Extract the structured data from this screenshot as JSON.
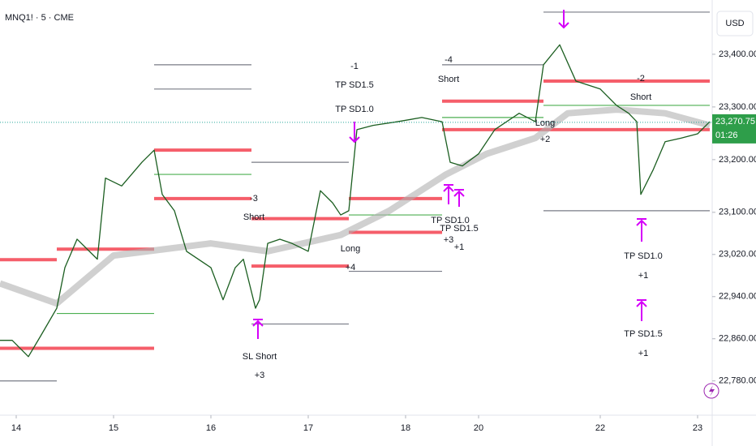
{
  "chart_data": {
    "type": "line",
    "title": "MNQ1! · 5 · CME",
    "currency": "USD",
    "last_price": {
      "value": 23270.75,
      "label": "23,270.75"
    },
    "countdown": "01:26",
    "xlim": [
      0,
      175
    ],
    "ylim": [
      22718,
      23503
    ],
    "grid": false,
    "xticks": [
      {
        "value": 4,
        "label": "14"
      },
      {
        "value": 28,
        "label": "15"
      },
      {
        "value": 52,
        "label": "16"
      },
      {
        "value": 76,
        "label": "17"
      },
      {
        "value": 100,
        "label": "18"
      },
      {
        "value": 118,
        "label": "20"
      },
      {
        "value": 148,
        "label": "22"
      },
      {
        "value": 172,
        "label": "23"
      }
    ],
    "yticks": [
      {
        "value": 22780,
        "label": "22,780.00"
      },
      {
        "value": 22860,
        "label": "22,860.00"
      },
      {
        "value": 22940,
        "label": "22,940.00"
      },
      {
        "value": 23020,
        "label": "23,020.00"
      },
      {
        "value": 23100,
        "label": "23,100.00"
      },
      {
        "value": 23200,
        "label": "23,200.00"
      },
      {
        "value": 23300,
        "label": "23,300.00"
      },
      {
        "value": 23400,
        "label": "23,400.00"
      }
    ],
    "series": [
      {
        "color": "#1b5e20",
        "x": [
          0,
          3,
          7,
          10,
          14,
          16,
          19,
          24,
          26,
          30,
          35,
          38,
          40,
          43,
          46,
          52,
          55,
          58,
          60,
          63,
          64,
          66,
          69,
          72,
          76,
          79,
          82,
          84,
          86,
          88,
          92,
          98,
          104,
          109,
          111,
          114,
          118,
          122,
          128,
          132,
          134,
          138,
          142,
          148,
          152,
          155,
          157,
          158,
          161,
          164,
          168,
          172,
          175
        ],
        "values": [
          22857,
          22857,
          22826,
          22865,
          22918,
          22995,
          23049,
          23011,
          23165,
          23150,
          23195,
          23218,
          23134,
          23103,
          23026,
          22995,
          22934,
          22995,
          23011,
          22918,
          22934,
          23041,
          23049,
          23041,
          23026,
          23141,
          23118,
          23095,
          23103,
          23257,
          23265,
          23272,
          23280,
          23272,
          23195,
          23188,
          23211,
          23257,
          23288,
          23272,
          23380,
          23418,
          23349,
          23334,
          23303,
          23288,
          23272,
          23134,
          23180,
          23234,
          23241,
          23249,
          23272
        ]
      },
      {
        "color": "#b0b0b0",
        "x": [
          0,
          14,
          28,
          52,
          66,
          84,
          96,
          110,
          120,
          132,
          140,
          152,
          164,
          175
        ],
        "values": [
          22965,
          22927,
          23018,
          23041,
          23026,
          23057,
          23103,
          23172,
          23211,
          23241,
          23288,
          23295,
          23288,
          23265
        ]
      }
    ],
    "levels": [
      {
        "x": [
          0,
          14
        ],
        "value": 23010,
        "color": "#f23645"
      },
      {
        "x": [
          0,
          38
        ],
        "value": 22842,
        "color": "#f23645"
      },
      {
        "x": [
          14,
          38
        ],
        "value": 23030,
        "color": "#f23645"
      },
      {
        "x": [
          14,
          38
        ],
        "value": 22908,
        "color": "#4caf50"
      },
      {
        "x": [
          38,
          62
        ],
        "value": 23218,
        "color": "#f23645"
      },
      {
        "x": [
          38,
          62
        ],
        "value": 23126,
        "color": "#f23645"
      },
      {
        "x": [
          38,
          62
        ],
        "value": 23172,
        "color": "#4caf50"
      },
      {
        "x": [
          62,
          86
        ],
        "value": 23088,
        "color": "#f23645"
      },
      {
        "x": [
          62,
          86
        ],
        "value": 22998,
        "color": "#f23645"
      },
      {
        "x": [
          86,
          109
        ],
        "value": 23126,
        "color": "#f23645"
      },
      {
        "x": [
          86,
          109
        ],
        "value": 23062,
        "color": "#f23645"
      },
      {
        "x": [
          86,
          109
        ],
        "value": 23095,
        "color": "#4caf50"
      },
      {
        "x": [
          109,
          134
        ],
        "value": 23311,
        "color": "#f23645"
      },
      {
        "x": [
          109,
          134
        ],
        "value": 23257,
        "color": "#f23645"
      },
      {
        "x": [
          109,
          134
        ],
        "value": 23280,
        "color": "#4caf50"
      },
      {
        "x": [
          134,
          175
        ],
        "value": 23349,
        "color": "#f23645"
      },
      {
        "x": [
          134,
          175
        ],
        "value": 23257,
        "color": "#f23645"
      },
      {
        "x": [
          134,
          175
        ],
        "value": 23303,
        "color": "#4caf50"
      },
      {
        "x": [
          38,
          62
        ],
        "value": 23380,
        "color": "#787b86"
      },
      {
        "x": [
          38,
          62
        ],
        "value": 23334,
        "color": "#787b86"
      },
      {
        "x": [
          62,
          86
        ],
        "value": 23195,
        "color": "#787b86"
      },
      {
        "x": [
          62,
          86
        ],
        "value": 22888,
        "color": "#787b86"
      },
      {
        "x": [
          86,
          109
        ],
        "value": 22988,
        "color": "#787b86"
      },
      {
        "x": [
          109,
          134
        ],
        "value": 23380,
        "color": "#787b86"
      },
      {
        "x": [
          134,
          175
        ],
        "value": 23480,
        "color": "#787b86"
      },
      {
        "x": [
          134,
          175
        ],
        "value": 23103,
        "color": "#787b86"
      },
      {
        "x": [
          0,
          14
        ],
        "value": 22780,
        "color": "#787b86"
      }
    ],
    "annotations": [
      "-3",
      "Short",
      "Long",
      "+4",
      "SL Short",
      "+3",
      "-1",
      "TP SD1.5",
      "TP SD1.0",
      "-4",
      "Short",
      "TP SD1.0",
      "+3",
      "TP SD1.5",
      "+1",
      "Long",
      "+2",
      "-2",
      "Short",
      "TP SD1.0",
      "+1",
      "TP SD1.5",
      "+1"
    ]
  }
}
